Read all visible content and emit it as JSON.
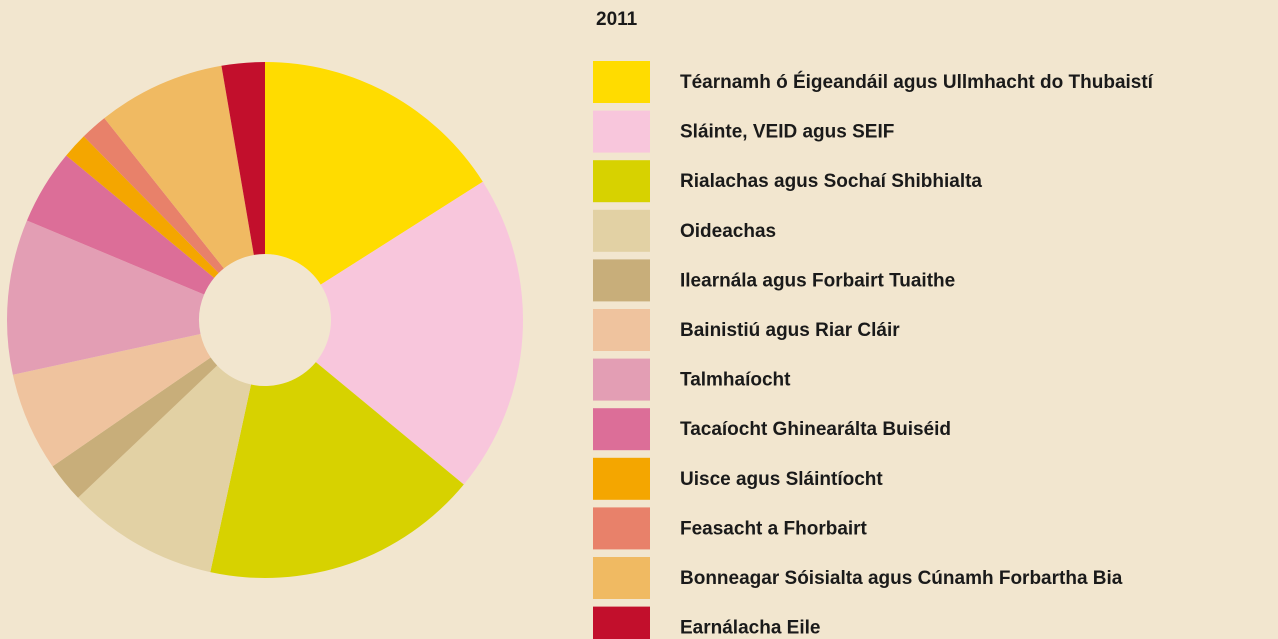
{
  "chart_data": {
    "type": "pie",
    "title": "2011",
    "categories": [
      "Téarnamh ó Éigeandáil agus Ullmhacht do Thubaistí",
      "Sláinte, VEID agus SEIF",
      "Rialachas agus Sochaí Shibhialta",
      "Oideachas",
      "Ilearnála agus Forbairt Tuaithe",
      "Bainistiú agus Riar Cláir",
      "Talmhaíocht",
      "Tacaíocht Ghinearálta Buiséid",
      "Uisce agus Sláintíocht",
      "Feasacht a Fhorbairt",
      "Bonneagar Sóisialta agus Cúnamh Forbartha Bia",
      "Earnálacha Eile"
    ],
    "values": [
      16,
      20,
      17.4,
      9.5,
      2.5,
      6.2,
      9.7,
      4.7,
      1.6,
      1.7,
      8,
      2.7
    ],
    "colors": [
      "#ffdc00",
      "#f8c6dc",
      "#d7d200",
      "#e2d1a4",
      "#c8ae7a",
      "#efc39e",
      "#e39eb4",
      "#dc6e98",
      "#f4a600",
      "#e8816a",
      "#f0ba62",
      "#c20f2c"
    ]
  }
}
